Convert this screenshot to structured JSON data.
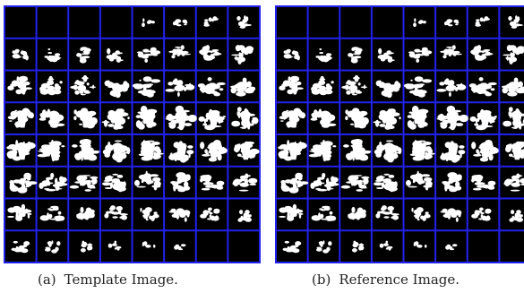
{
  "figure": {
    "grid": {
      "rows": 8,
      "cols": 8
    },
    "panels": [
      {
        "id": "a",
        "caption_tag": "(a)",
        "caption_text": "Template Image.",
        "image": "mri-slice-montage-binary"
      },
      {
        "id": "b",
        "caption_tag": "(b)",
        "caption_text": "Reference Image.",
        "image": "mri-slice-montage-binary"
      }
    ],
    "colors": {
      "grid_border": "#2222ee",
      "cell_background": "#000000",
      "tissue": "#ffffff"
    }
  }
}
